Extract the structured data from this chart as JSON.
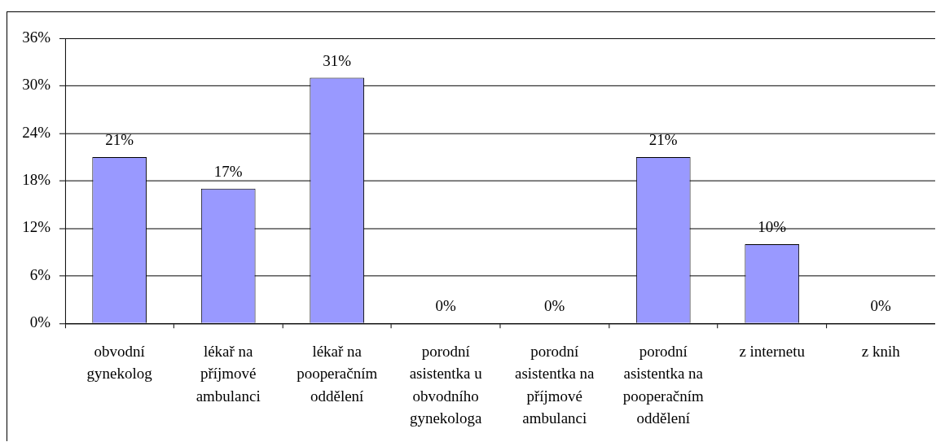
{
  "chart_data": {
    "type": "bar",
    "categories": [
      "obvodní gynekolog",
      "lékař na příjmové ambulanci",
      "lékař na pooperačním oddělení",
      "porodní asistentka u obvodního gynekologa",
      "porodní asistentka na příjmové ambulanci",
      "porodní asistentka na pooperačním oddělení",
      "z internetu",
      "z knih"
    ],
    "values": [
      21,
      17,
      31,
      0,
      0,
      21,
      10,
      0
    ],
    "value_labels": [
      "21%",
      "17%",
      "31%",
      "0%",
      "0%",
      "21%",
      "10%",
      "0%"
    ],
    "color": "#9999ff",
    "ylim": [
      0,
      36
    ],
    "yticks": [
      {
        "value": 0,
        "label": "0%"
      },
      {
        "value": 6,
        "label": "6%"
      },
      {
        "value": 12,
        "label": "12%"
      },
      {
        "value": 18,
        "label": "18%"
      },
      {
        "value": 24,
        "label": "24%"
      },
      {
        "value": 30,
        "label": "30%"
      },
      {
        "value": 36,
        "label": "36%"
      }
    ],
    "grid": "y"
  }
}
